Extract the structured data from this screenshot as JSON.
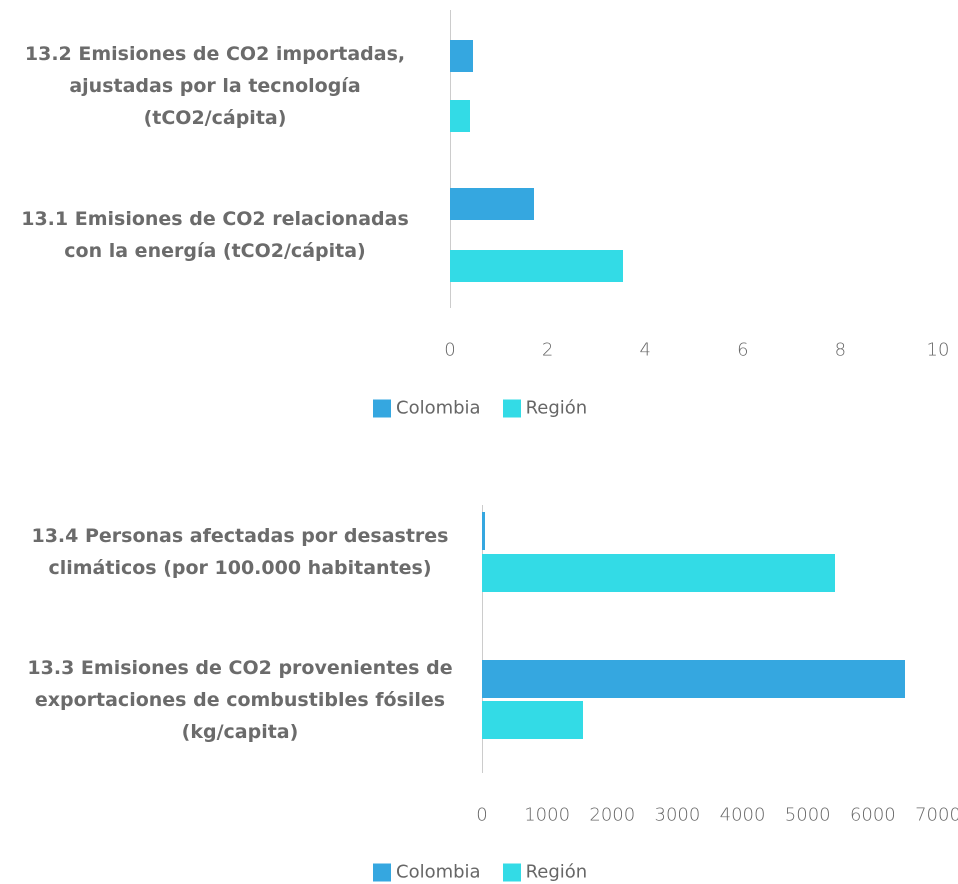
{
  "chart_data": [
    {
      "type": "bar",
      "orientation": "horizontal",
      "categories": [
        "13.2 Emisiones de CO2 importadas, ajustadas por la tecnología (tCO2/cápita)",
        "13.1 Emisiones de CO2 relacionadas con la energía (tCO2/cápita)"
      ],
      "series": [
        {
          "name": "Colombia",
          "color": "#35a7e0",
          "values": [
            0.47,
            1.72
          ]
        },
        {
          "name": "Región",
          "color": "#33dbe6",
          "values": [
            0.41,
            3.55
          ]
        }
      ],
      "xlim": [
        0,
        10
      ],
      "xticks": [
        0,
        2,
        4,
        6,
        8,
        10
      ],
      "legend": "bottom"
    },
    {
      "type": "bar",
      "orientation": "horizontal",
      "categories": [
        "13.4 Personas afectadas por desastres climáticos (por 100.000 habitantes)",
        "13.3 Emisiones de CO2 provenientes de exportaciones de combustibles fósiles (kg/capita)"
      ],
      "series": [
        {
          "name": "Colombia",
          "color": "#35a7e0",
          "values": [
            46,
            6494
          ]
        },
        {
          "name": "Región",
          "color": "#33dbe6",
          "values": [
            5419,
            1550
          ]
        }
      ],
      "xlim": [
        0,
        7000
      ],
      "xticks": [
        0,
        1000,
        2000,
        3000,
        4000,
        5000,
        6000,
        7000
      ],
      "legend": "bottom"
    }
  ]
}
